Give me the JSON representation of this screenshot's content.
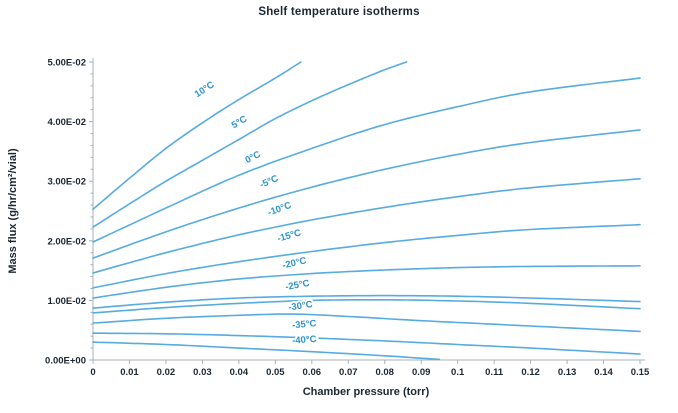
{
  "page": {
    "title": "Shelf temperature isotherms"
  },
  "colors": {
    "curve": "#56ace0",
    "curve_label": "#2f93cd",
    "axis": "#a9b0b6",
    "text": "#1b2733",
    "background": "#ffffff"
  },
  "chart_data": {
    "type": "line",
    "title": "Shelf temperature isotherms",
    "xlabel": "Chamber pressure (torr)",
    "ylabel": "Mass flux (g/hr/cm²/vial)",
    "xlim": [
      0,
      0.15
    ],
    "ylim": [
      0,
      0.05
    ],
    "grid": false,
    "legend_position": "inline-curve-labels",
    "x_tick_labels": [
      "0",
      "0.01",
      "0.02",
      "0.03",
      "0.04",
      "0.05",
      "0.06",
      "0.07",
      "0.08",
      "0.09",
      "0.1",
      "0.11",
      "0.12",
      "0.13",
      "0.14",
      "0.15"
    ],
    "x_ticks": [
      0,
      0.01,
      0.02,
      0.03,
      0.04,
      0.05,
      0.06,
      0.07,
      0.08,
      0.09,
      0.1,
      0.11,
      0.12,
      0.13,
      0.14,
      0.15
    ],
    "y_tick_labels": [
      "0.00E+00",
      "1.00E-02",
      "2.00E-02",
      "3.00E-02",
      "4.00E-02",
      "5.00E-02"
    ],
    "y_ticks": [
      0,
      0.01,
      0.02,
      0.03,
      0.04,
      0.05
    ],
    "y_minor_step": 0.002,
    "series": [
      {
        "name": "10°C",
        "label_pos": {
          "x": 0.031,
          "y": 0.045,
          "rot": -33
        },
        "points": [
          [
            0,
            0.0253
          ],
          [
            0.01,
            0.0305
          ],
          [
            0.02,
            0.0355
          ],
          [
            0.03,
            0.0398
          ],
          [
            0.04,
            0.0437
          ],
          [
            0.05,
            0.0473
          ],
          [
            0.057,
            0.05
          ]
        ]
      },
      {
        "name": "5°C",
        "label_pos": {
          "x": 0.0405,
          "y": 0.0395,
          "rot": -30
        },
        "points": [
          [
            0,
            0.0223
          ],
          [
            0.01,
            0.0262
          ],
          [
            0.02,
            0.03
          ],
          [
            0.03,
            0.0335
          ],
          [
            0.04,
            0.037
          ],
          [
            0.05,
            0.0405
          ],
          [
            0.06,
            0.0435
          ],
          [
            0.07,
            0.0462
          ],
          [
            0.08,
            0.0487
          ],
          [
            0.086,
            0.05
          ]
        ]
      },
      {
        "name": "0°C",
        "label_pos": {
          "x": 0.0442,
          "y": 0.0336,
          "rot": -27
        },
        "points": [
          [
            0,
            0.0198
          ],
          [
            0.02,
            0.0255
          ],
          [
            0.04,
            0.031
          ],
          [
            0.06,
            0.0355
          ],
          [
            0.08,
            0.0395
          ],
          [
            0.1,
            0.0425
          ],
          [
            0.12,
            0.045
          ],
          [
            0.15,
            0.0473
          ]
        ]
      },
      {
        "name": "-5°C",
        "label_pos": {
          "x": 0.0486,
          "y": 0.0295,
          "rot": -24
        },
        "points": [
          [
            0,
            0.0171
          ],
          [
            0.02,
            0.0215
          ],
          [
            0.04,
            0.0255
          ],
          [
            0.06,
            0.029
          ],
          [
            0.08,
            0.032
          ],
          [
            0.1,
            0.0345
          ],
          [
            0.12,
            0.0365
          ],
          [
            0.15,
            0.0386
          ]
        ]
      },
      {
        "name": "-10°C",
        "label_pos": {
          "x": 0.0514,
          "y": 0.0249,
          "rot": -20
        },
        "points": [
          [
            0,
            0.0146
          ],
          [
            0.02,
            0.018
          ],
          [
            0.04,
            0.021
          ],
          [
            0.06,
            0.0235
          ],
          [
            0.08,
            0.0256
          ],
          [
            0.1,
            0.0274
          ],
          [
            0.12,
            0.0289
          ],
          [
            0.15,
            0.0304
          ]
        ]
      },
      {
        "name": "-15°C",
        "label_pos": {
          "x": 0.054,
          "y": 0.0204,
          "rot": -16
        },
        "points": [
          [
            0,
            0.0121
          ],
          [
            0.02,
            0.0145
          ],
          [
            0.04,
            0.0165
          ],
          [
            0.06,
            0.0182
          ],
          [
            0.08,
            0.0197
          ],
          [
            0.1,
            0.0209
          ],
          [
            0.12,
            0.0219
          ],
          [
            0.15,
            0.0227
          ]
        ]
      },
      {
        "name": "-20°C",
        "label_pos": {
          "x": 0.0554,
          "y": 0.0158,
          "rot": -13
        },
        "points": [
          [
            0,
            0.0104
          ],
          [
            0.02,
            0.0122
          ],
          [
            0.04,
            0.0136
          ],
          [
            0.06,
            0.0145
          ],
          [
            0.08,
            0.0151
          ],
          [
            0.1,
            0.0155
          ],
          [
            0.12,
            0.0157
          ],
          [
            0.15,
            0.0158
          ]
        ]
      },
      {
        "name": "-25°C",
        "label_pos": {
          "x": 0.0562,
          "y": 0.0121,
          "rot": -10
        },
        "points": [
          [
            0,
            0.0087
          ],
          [
            0.02,
            0.0097
          ],
          [
            0.04,
            0.0104
          ],
          [
            0.06,
            0.0107
          ],
          [
            0.08,
            0.0108
          ],
          [
            0.1,
            0.0107
          ],
          [
            0.12,
            0.0104
          ],
          [
            0.15,
            0.0098
          ]
        ]
      },
      {
        "name": "-30°C",
        "label_pos": {
          "x": 0.057,
          "y": 0.0086,
          "rot": -8
        },
        "points": [
          [
            0,
            0.0079
          ],
          [
            0.02,
            0.0088
          ],
          [
            0.04,
            0.0095
          ],
          [
            0.06,
            0.01
          ],
          [
            0.08,
            0.0101
          ],
          [
            0.1,
            0.0099
          ],
          [
            0.12,
            0.0095
          ],
          [
            0.15,
            0.0086
          ]
        ]
      },
      {
        "name": "-35°C",
        "label_pos": {
          "x": 0.058,
          "y": 0.0055,
          "rot": -5
        },
        "points": [
          [
            0,
            0.0062
          ],
          [
            0.02,
            0.007
          ],
          [
            0.04,
            0.0075
          ],
          [
            0.055,
            0.0077
          ],
          [
            0.07,
            0.0073
          ],
          [
            0.09,
            0.0066
          ],
          [
            0.11,
            0.006
          ],
          [
            0.13,
            0.0054
          ],
          [
            0.15,
            0.0048
          ]
        ]
      },
      {
        "name": "-40°C",
        "label_pos": {
          "x": 0.058,
          "y": 0.0029,
          "rot": -4
        },
        "points": [
          [
            0,
            0.0045
          ],
          [
            0.02,
            0.0044
          ],
          [
            0.04,
            0.0041
          ],
          [
            0.06,
            0.0037
          ],
          [
            0.08,
            0.0032
          ],
          [
            0.1,
            0.0026
          ],
          [
            0.12,
            0.002
          ],
          [
            0.15,
            0.001
          ]
        ]
      },
      {
        "name": "",
        "points": [
          [
            0,
            0.003
          ],
          [
            0.02,
            0.0026
          ],
          [
            0.04,
            0.002
          ],
          [
            0.06,
            0.0014
          ],
          [
            0.08,
            0.0007
          ],
          [
            0.095,
            0.0001
          ]
        ]
      }
    ]
  }
}
